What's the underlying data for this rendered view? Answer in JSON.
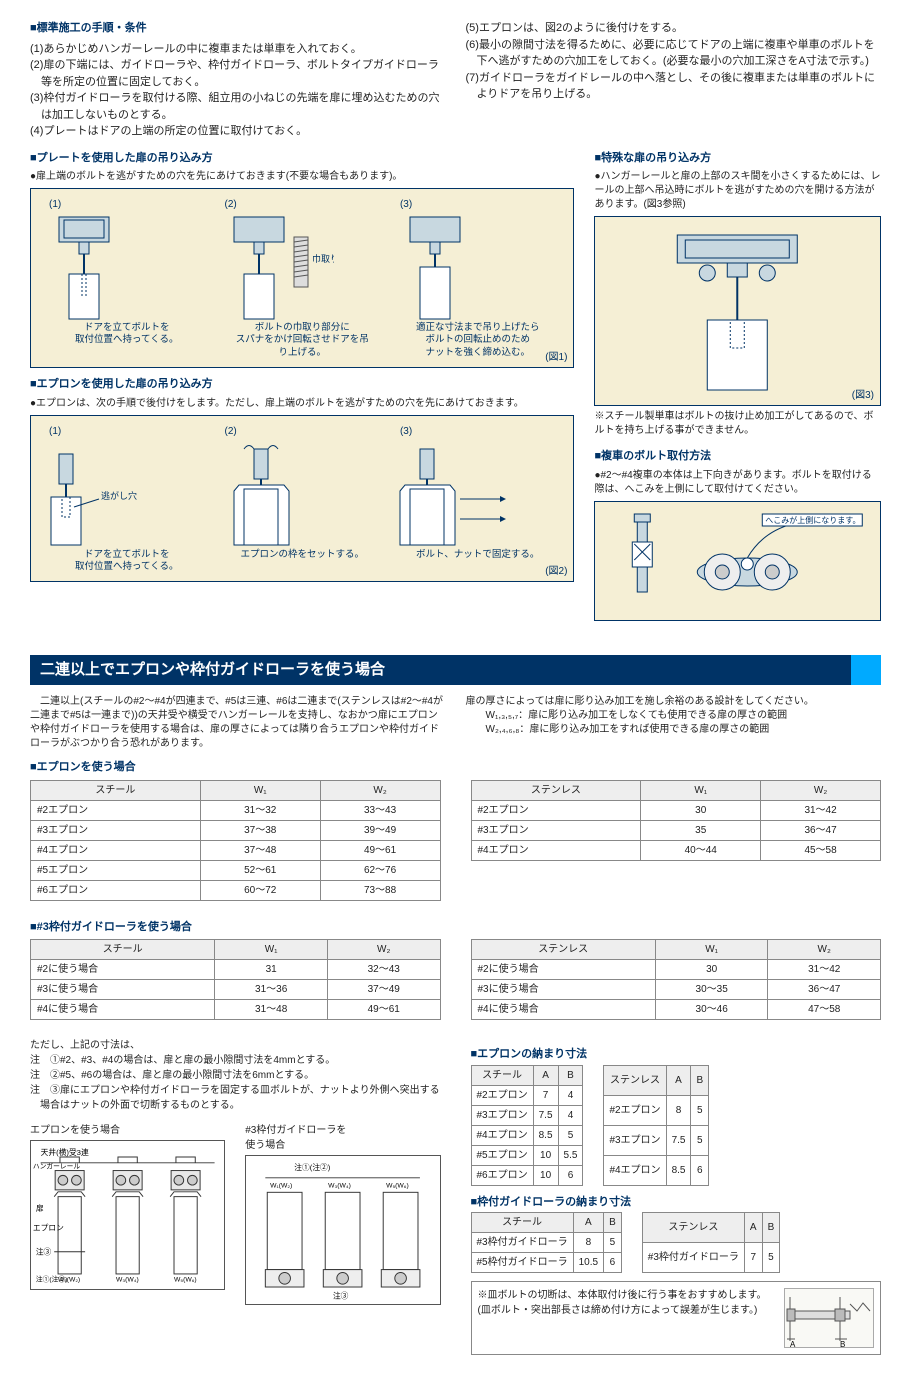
{
  "colors": {
    "navy": "#003366",
    "cream": "#f5efd5",
    "accent": "#00aaff",
    "grid": "#888888"
  },
  "top_left": {
    "h1": "■標準施工の手順・条件",
    "items": [
      "(1)あらかじめハンガーレールの中に複車または単車を入れておく。",
      "(2)扉の下端には、ガイドローラや、枠付ガイドローラ、ボルトタイプガイドローラ等を所定の位置に固定しておく。",
      "(3)枠付ガイドローラを取付ける際、組立用の小ねじの先端を扉に埋め込むための穴は加工しないものとする。",
      "(4)プレートはドアの上端の所定の位置に取付けておく。"
    ]
  },
  "top_right": {
    "items": [
      "(5)エプロンは、図2のように後付けをする。",
      "(6)最小の隙間寸法を得るために、必要に応じてドアの上端に複車や単車のボルトを下へ逃がすための穴加工をしておく。(必要な最小の穴加工深さをA寸法で示す。)",
      "(7)ガイドローラをガイドレールの中へ落とし、その後に複車または単車のボルトによりドアを吊り上げる。"
    ]
  },
  "fig1": {
    "h": "■プレートを使用した扉の吊り込み方",
    "sub": "●扉上端のボルトを逃がすための穴を先にあけておきます(不要な場合もあります)。",
    "label": "(図1)",
    "steps": [
      {
        "n": "(1)",
        "cap": "ドアを立てボルトを\n取付位置へ持ってくる。"
      },
      {
        "n": "(2)",
        "cap": "ボルトの巾取り部分に\nスパナをかけ回転させドアを吊\nり上げる。"
      },
      {
        "n": "(3)",
        "cap": "適正な寸法まで吊り上げたら\nボルトの回転止めのため\nナットを強く締め込む。"
      }
    ],
    "label_hadori": "巾取り"
  },
  "fig2": {
    "h": "■エプロンを使用した扉の吊り込み方",
    "sub": "●エプロンは、次の手順で後付けをします。ただし、扉上端のボルトを逃がすための穴を先にあけておきます。",
    "label": "(図2)",
    "steps": [
      {
        "n": "(1)",
        "cap": "ドアを立てボルトを\n取付位置へ持ってくる。",
        "note": "逃がし穴"
      },
      {
        "n": "(2)",
        "cap": "エプロンの枠をセットする。"
      },
      {
        "n": "(3)",
        "cap": "ボルト、ナットで固定する。"
      }
    ]
  },
  "fig3": {
    "h": "■特殊な扉の吊り込み方",
    "sub": "●ハンガーレールと扉の上部のスキ間を小さくするためには、レールの上部へ吊込時にボルトを逃がすための穴を開ける方法があります。(図3参照)",
    "label": "(図3)",
    "note": "※スチール製単車はボルトの抜け止め加工がしてあるので、ボルトを持ち上げる事ができません。"
  },
  "bolt_method": {
    "h": "■複車のボルト取付方法",
    "sub": "●#2～#4複車の本体は上下向きがあります。ボルトを取付ける際は、へこみを上側にして取付けてください。",
    "callout": "へこみが上側になります。"
  },
  "section2": {
    "title": "二連以上でエプロンや枠付ガイドローラを使う場合",
    "left_text": "　二連以上(スチールの#2～#4が四連まで、#5は三連、#6は二連まで(ステンレスは#2～#4が二連まで#5は一連まで))の天井受や横受でハンガーレールを支持し、なおかつ扉にエプロンや枠付ガイドローラを使用する場合は、扉の厚さによっては隣り合うエプロンや枠付ガイドローラがぶつかり合う恐れがあります。",
    "right_text": "扉の厚さによっては扉に彫り込み加工を施し余裕のある設計をしてください。",
    "right_w1": "W₁,₃,₅,₇：扉に彫り込み加工をしなくても使用できる扉の厚さの範囲",
    "right_w2": "W₂,₄,₆,₈：扉に彫り込み加工をすれば使用できる扉の厚さの範囲"
  },
  "apron_use": {
    "h": "■エプロンを使う場合",
    "steel": {
      "cols": [
        "スチール",
        "W₁",
        "W₂"
      ],
      "rows": [
        [
          "#2エプロン",
          "31～32",
          "33～43"
        ],
        [
          "#3エプロン",
          "37～38",
          "39～49"
        ],
        [
          "#4エプロン",
          "37～48",
          "49～61"
        ],
        [
          "#5エプロン",
          "52～61",
          "62～76"
        ],
        [
          "#6エプロン",
          "60～72",
          "73～88"
        ]
      ]
    },
    "sus": {
      "cols": [
        "ステンレス",
        "W₁",
        "W₂"
      ],
      "rows": [
        [
          "#2エプロン",
          "30",
          "31～42"
        ],
        [
          "#3エプロン",
          "35",
          "36～47"
        ],
        [
          "#4エプロン",
          "40～44",
          "45～58"
        ]
      ]
    }
  },
  "guide_use": {
    "h": "■#3枠付ガイドローラを使う場合",
    "steel": {
      "cols": [
        "スチール",
        "W₁",
        "W₂"
      ],
      "rows": [
        [
          "#2に使う場合",
          "31",
          "32～43"
        ],
        [
          "#3に使う場合",
          "31～36",
          "37～49"
        ],
        [
          "#4に使う場合",
          "31～48",
          "49～61"
        ]
      ]
    },
    "sus": {
      "cols": [
        "ステンレス",
        "W₁",
        "W₂"
      ],
      "rows": [
        [
          "#2に使う場合",
          "30",
          "31～42"
        ],
        [
          "#3に使う場合",
          "30～35",
          "36～47"
        ],
        [
          "#4に使う場合",
          "30～46",
          "47～58"
        ]
      ]
    }
  },
  "notes": {
    "intro": "ただし、上記の寸法は、",
    "n1": "注　①#2、#3、#4の場合は、扉と扉の最小隙間寸法を4mmとする。",
    "n2": "注　②#5、#6の場合は、扉と扉の最小隙間寸法を6mmとする。",
    "n3": "注　③扉にエプロンや枠付ガイドローラを固定する皿ボルトが、ナットより外側へ突出する場合はナットの外面で切断するものとする。"
  },
  "bottom_dia": {
    "left": "エプロンを使う場合",
    "right": "#3枠付ガイドローラを\n使う場合",
    "labels": {
      "tenjo": "天井(横)受3連",
      "hanger": "ハンガーレール",
      "tobira": "扉",
      "apron": "エプロン",
      "n3": "注③",
      "n12": "注①(注②)",
      "w": "W₁(W₂)"
    }
  },
  "apron_dim": {
    "h": "■エプロンの納まり寸法",
    "steel": {
      "cols": [
        "スチール",
        "A",
        "B"
      ],
      "rows": [
        [
          "#2エプロン",
          "7",
          "4"
        ],
        [
          "#3エプロン",
          "7.5",
          "4"
        ],
        [
          "#4エプロン",
          "8.5",
          "5"
        ],
        [
          "#5エプロン",
          "10",
          "5.5"
        ],
        [
          "#6エプロン",
          "10",
          "6"
        ]
      ]
    },
    "sus": {
      "cols": [
        "ステンレス",
        "A",
        "B"
      ],
      "rows": [
        [
          "#2エプロン",
          "8",
          "5"
        ],
        [
          "#3エプロン",
          "7.5",
          "5"
        ],
        [
          "#4エプロン",
          "8.5",
          "6"
        ]
      ]
    }
  },
  "guide_dim": {
    "h": "■枠付ガイドローラの納まり寸法",
    "steel": {
      "cols": [
        "スチール",
        "A",
        "B"
      ],
      "rows": [
        [
          "#3枠付ガイドローラ",
          "8",
          "5"
        ],
        [
          "#5枠付ガイドローラ",
          "10.5",
          "6"
        ]
      ]
    },
    "sus": {
      "cols": [
        "ステンレス",
        "A",
        "B"
      ],
      "rows": [
        [
          "#3枠付ガイドローラ",
          "7",
          "5"
        ]
      ]
    }
  },
  "bolt_note": {
    "l1": "※皿ボルトの切断は、本体取付け後に行う事をおすすめします。",
    "l2": "(皿ボルト・突出部長さは締め付け方によって誤差が生じます。)",
    "a": "A",
    "b": "B"
  }
}
